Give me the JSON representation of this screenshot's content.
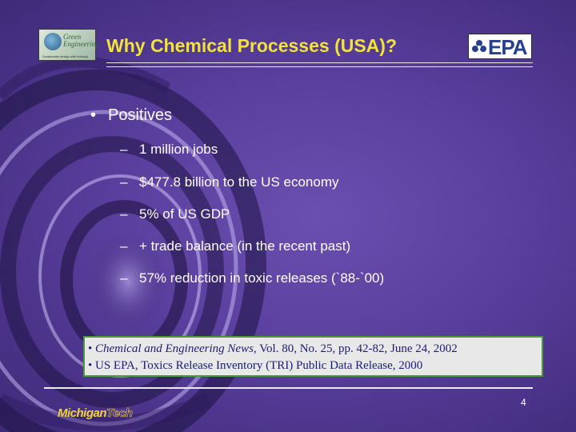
{
  "slide": {
    "title": "Why Chemical Processes (USA)?",
    "logos": {
      "left": {
        "name": "Green Engineering",
        "line1": "Green",
        "line2": "Engineering",
        "tagline": "Sustainable design with industry"
      },
      "right": {
        "name": "EPA",
        "text": "EPA"
      }
    },
    "bullet": {
      "label": "Positives",
      "marker": "•"
    },
    "sub_items": [
      {
        "marker": "–",
        "text": "1 million jobs"
      },
      {
        "marker": "–",
        "text": "$477.8 billion to the US economy"
      },
      {
        "marker": "–",
        "text": "5% of US GDP"
      },
      {
        "marker": "–",
        "text": "+ trade balance (in the recent past)"
      },
      {
        "marker": "–",
        "text": "57% reduction in toxic releases (`88-`00)"
      }
    ],
    "references": {
      "line1": {
        "prefix": "• ",
        "italic": "Chemical and Engineering News",
        "rest": ", Vol. 80, No. 25, pp. 42-82, June 24, 2002"
      },
      "line2": {
        "text": "• US EPA, Toxics Release Inventory (TRI) Public Data Release, 2000"
      }
    },
    "page_number": "4",
    "footer_logo": {
      "part1": "Michigan",
      "part2": "Tech"
    },
    "colors": {
      "background": "#5a3f9e",
      "title": "#f2e23a",
      "text": "#ffffff",
      "ref_box": "#e8e8e8",
      "ref_border": "#4a9a3a",
      "ref_text": "#1a1a7a"
    }
  }
}
